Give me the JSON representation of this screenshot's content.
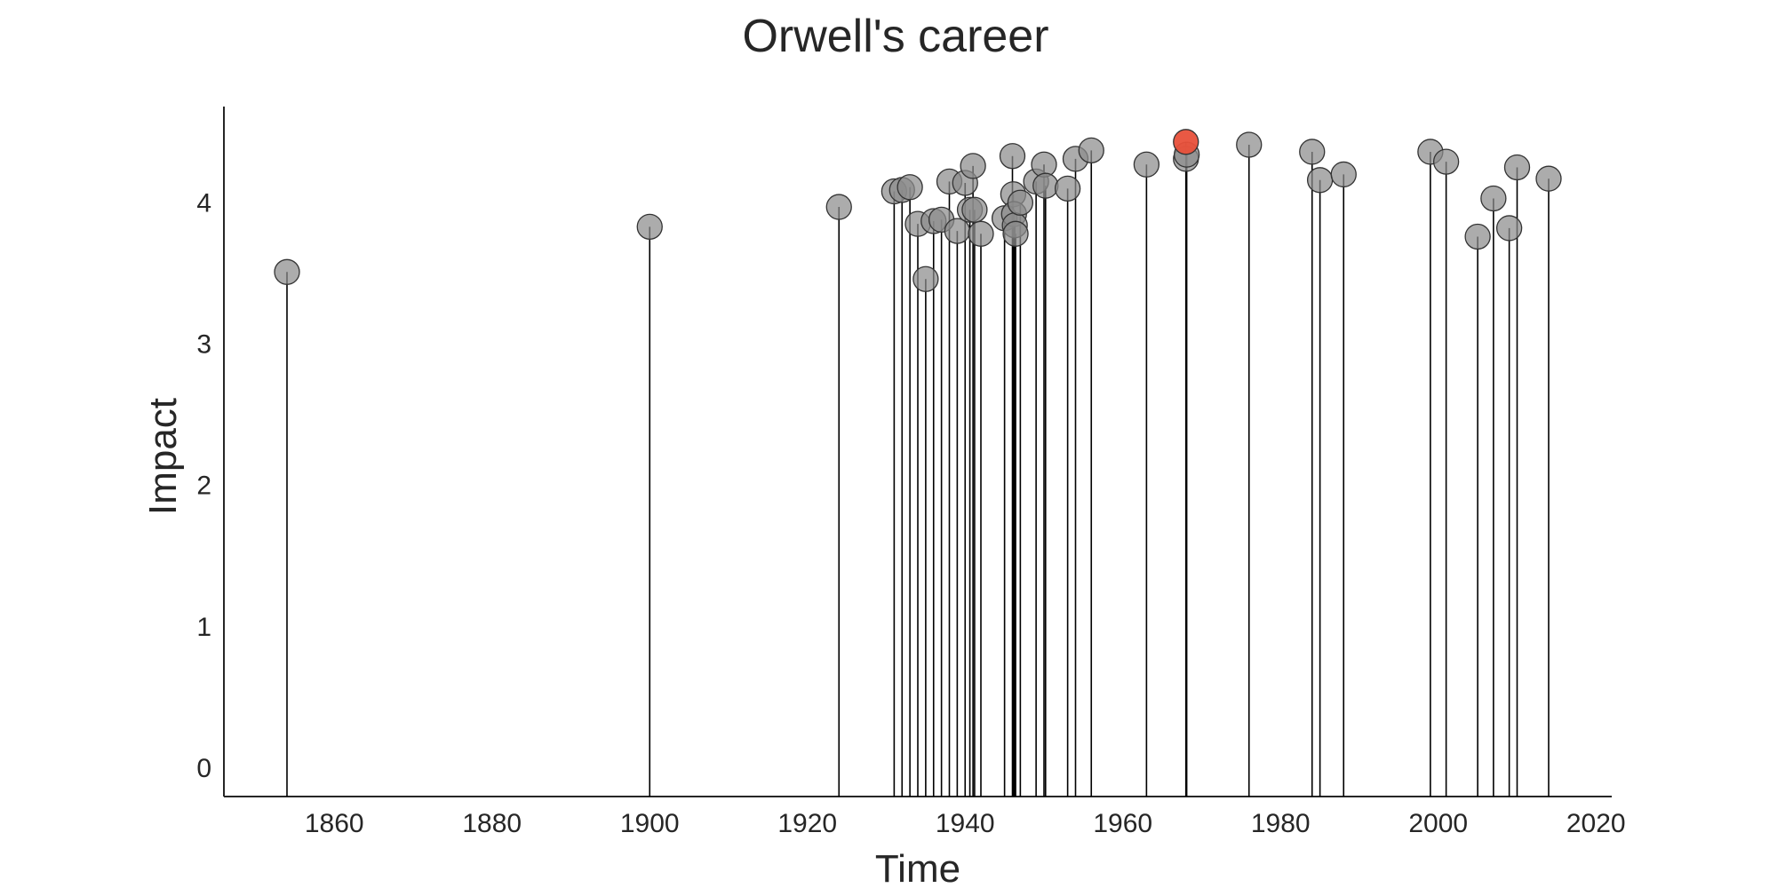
{
  "chart_data": {
    "type": "scatter",
    "style": "lollipop",
    "title": "Orwell's career",
    "xlabel": "Time",
    "ylabel": "Impact",
    "xlim": [
      1846,
      2022
    ],
    "ylim": [
      -0.2,
      4.68
    ],
    "xticks": [
      1860,
      1880,
      1900,
      1920,
      1940,
      1960,
      1980,
      2000,
      2020
    ],
    "yticks": [
      0,
      1,
      2,
      3,
      4
    ],
    "grid": false,
    "colors": {
      "point": "#8c8c8c",
      "highlight": "#e8503a",
      "stem": "#000000"
    },
    "points": [
      {
        "x": 1854,
        "y": 3.51
      },
      {
        "x": 1900,
        "y": 3.83
      },
      {
        "x": 1924,
        "y": 3.97
      },
      {
        "x": 1931,
        "y": 4.08
      },
      {
        "x": 1932,
        "y": 4.09
      },
      {
        "x": 1933,
        "y": 4.11
      },
      {
        "x": 1934,
        "y": 3.85
      },
      {
        "x": 1935,
        "y": 3.46
      },
      {
        "x": 1936,
        "y": 3.87
      },
      {
        "x": 1937,
        "y": 3.88
      },
      {
        "x": 1938,
        "y": 4.15
      },
      {
        "x": 1939,
        "y": 3.8
      },
      {
        "x": 1940,
        "y": 4.14
      },
      {
        "x": 1940.6,
        "y": 3.95
      },
      {
        "x": 1941,
        "y": 4.26
      },
      {
        "x": 1942,
        "y": 3.78
      },
      {
        "x": 1941.2,
        "y": 3.95
      },
      {
        "x": 1945,
        "y": 3.89
      },
      {
        "x": 1946,
        "y": 4.33
      },
      {
        "x": 1946.1,
        "y": 4.06
      },
      {
        "x": 1946.2,
        "y": 3.92
      },
      {
        "x": 1946.3,
        "y": 3.84
      },
      {
        "x": 1946.4,
        "y": 3.78
      },
      {
        "x": 1947,
        "y": 4.0
      },
      {
        "x": 1949,
        "y": 4.15
      },
      {
        "x": 1950,
        "y": 4.27
      },
      {
        "x": 1950.2,
        "y": 4.12
      },
      {
        "x": 1953,
        "y": 4.1
      },
      {
        "x": 1954,
        "y": 4.31
      },
      {
        "x": 1956,
        "y": 4.37
      },
      {
        "x": 1963,
        "y": 4.27
      },
      {
        "x": 1968,
        "y": 4.31
      },
      {
        "x": 1968.1,
        "y": 4.34
      },
      {
        "x": 1968,
        "y": 4.43,
        "highlight": true
      },
      {
        "x": 1976,
        "y": 4.41
      },
      {
        "x": 1984,
        "y": 4.36
      },
      {
        "x": 1985,
        "y": 4.16
      },
      {
        "x": 1988,
        "y": 4.2
      },
      {
        "x": 1999,
        "y": 4.36
      },
      {
        "x": 2001,
        "y": 4.29
      },
      {
        "x": 2005,
        "y": 3.76
      },
      {
        "x": 2007,
        "y": 4.03
      },
      {
        "x": 2009,
        "y": 3.82
      },
      {
        "x": 2010,
        "y": 4.25
      },
      {
        "x": 2014,
        "y": 4.17
      }
    ]
  }
}
